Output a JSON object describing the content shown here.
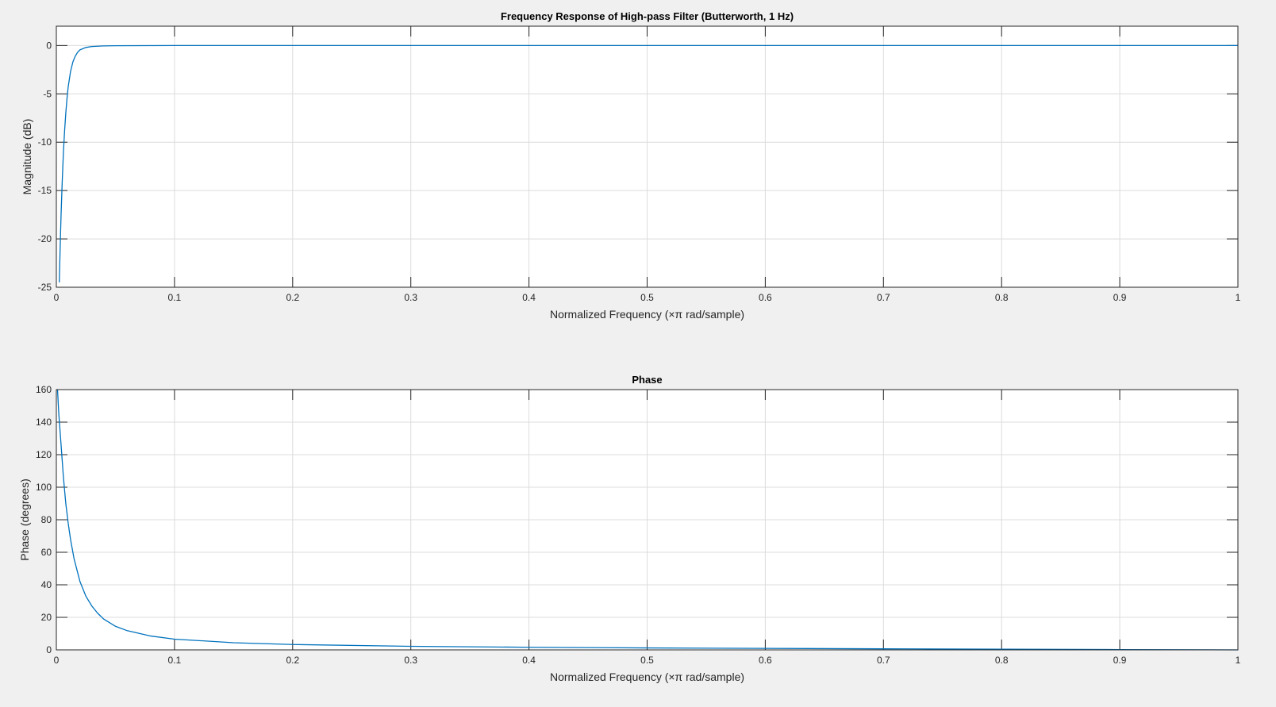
{
  "chart_data": [
    {
      "type": "line",
      "title": "Frequency Response of High-pass Filter (Butterworth, 1 Hz)",
      "xlabel": "Normalized Frequency  (×π rad/sample)",
      "ylabel": "Magnitude (dB)",
      "xlim": [
        0,
        1
      ],
      "ylim": [
        -25,
        2
      ],
      "xticks": [
        0,
        0.1,
        0.2,
        0.3,
        0.4,
        0.5,
        0.6,
        0.7,
        0.8,
        0.9,
        1
      ],
      "xtick_labels": [
        "0",
        "0.1",
        "0.2",
        "0.3",
        "0.4",
        "0.5",
        "0.6",
        "0.7",
        "0.8",
        "0.9",
        "1"
      ],
      "yticks": [
        -25,
        -20,
        -15,
        -10,
        -5,
        0
      ],
      "ytick_labels": [
        "-25",
        "-20",
        "-15",
        "-10",
        "-5",
        "0"
      ],
      "grid": true,
      "color": "#0072bd",
      "series": [
        {
          "x": [
            0.0025,
            0.003,
            0.004,
            0.005,
            0.006,
            0.007,
            0.008,
            0.009,
            0.01,
            0.012,
            0.014,
            0.016,
            0.018,
            0.02,
            0.025,
            0.03,
            0.04,
            0.05,
            0.1,
            0.2,
            0.3,
            0.4,
            0.5,
            0.6,
            0.7,
            0.8,
            0.9,
            1.0
          ],
          "y": [
            -24.5,
            -22.0,
            -17.5,
            -14.0,
            -11.0,
            -8.8,
            -7.0,
            -5.5,
            -4.3,
            -2.7,
            -1.7,
            -1.1,
            -0.7,
            -0.45,
            -0.2,
            -0.1,
            -0.04,
            -0.02,
            0,
            0,
            0,
            0,
            0,
            0,
            0,
            0,
            0,
            0
          ]
        }
      ]
    },
    {
      "type": "line",
      "title": "Phase",
      "xlabel": "Normalized Frequency  (×π rad/sample)",
      "ylabel": "Phase (degrees)",
      "xlim": [
        0,
        1
      ],
      "ylim": [
        0,
        160
      ],
      "xticks": [
        0,
        0.1,
        0.2,
        0.3,
        0.4,
        0.5,
        0.6,
        0.7,
        0.8,
        0.9,
        1
      ],
      "xtick_labels": [
        "0",
        "0.1",
        "0.2",
        "0.3",
        "0.4",
        "0.5",
        "0.6",
        "0.7",
        "0.8",
        "0.9",
        "1"
      ],
      "yticks": [
        0,
        20,
        40,
        60,
        80,
        100,
        120,
        140,
        160
      ],
      "ytick_labels": [
        "0",
        "20",
        "40",
        "60",
        "80",
        "100",
        "120",
        "140",
        "160"
      ],
      "grid": true,
      "color": "#0072bd",
      "series": [
        {
          "x": [
            0.001,
            0.002,
            0.004,
            0.006,
            0.008,
            0.01,
            0.012,
            0.015,
            0.02,
            0.025,
            0.03,
            0.035,
            0.04,
            0.05,
            0.06,
            0.08,
            0.1,
            0.15,
            0.2,
            0.3,
            0.4,
            0.5,
            0.6,
            0.7,
            0.8,
            0.9,
            1.0
          ],
          "y": [
            160,
            146,
            126,
            106,
            90,
            78,
            68,
            56,
            42,
            33,
            27,
            22.5,
            19,
            14.5,
            11.8,
            8.5,
            6.6,
            4.4,
            3.3,
            2.2,
            1.6,
            1.2,
            0.9,
            0.65,
            0.4,
            0.2,
            0.0
          ]
        }
      ]
    }
  ]
}
